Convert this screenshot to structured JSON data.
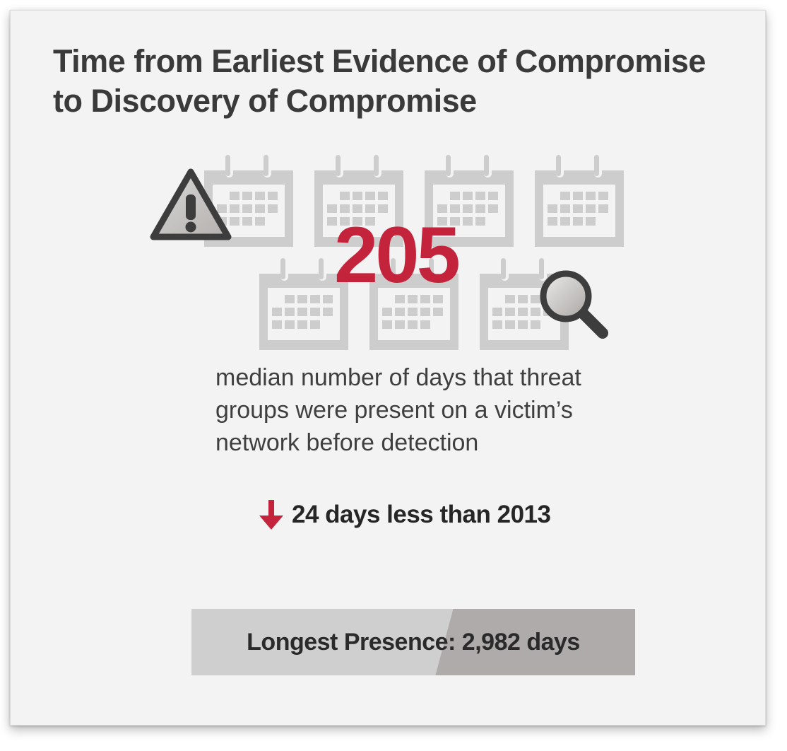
{
  "title": {
    "line1": "Time from Earliest Evidence of Compromise",
    "line2": "to Discovery of Compromise"
  },
  "stat": {
    "median_days": "205",
    "description_line1": "median number of days that threat",
    "description_line2": "groups were present on a victim’s",
    "description_line3": "network before detection"
  },
  "comparison": {
    "text": "24 days less than 2013",
    "direction": "down",
    "icon": "down-arrow-icon"
  },
  "longest": {
    "label": "Longest Presence: 2,982 days"
  },
  "icons": {
    "calendar_count": 7,
    "calendar": "calendar-icon",
    "warning": "warning-icon",
    "search": "magnifier-icon"
  },
  "colors": {
    "accent": "#c4243b",
    "background": "#f3f3f3",
    "calendar": "#cdcdcd",
    "text": "#3a3a3a"
  }
}
